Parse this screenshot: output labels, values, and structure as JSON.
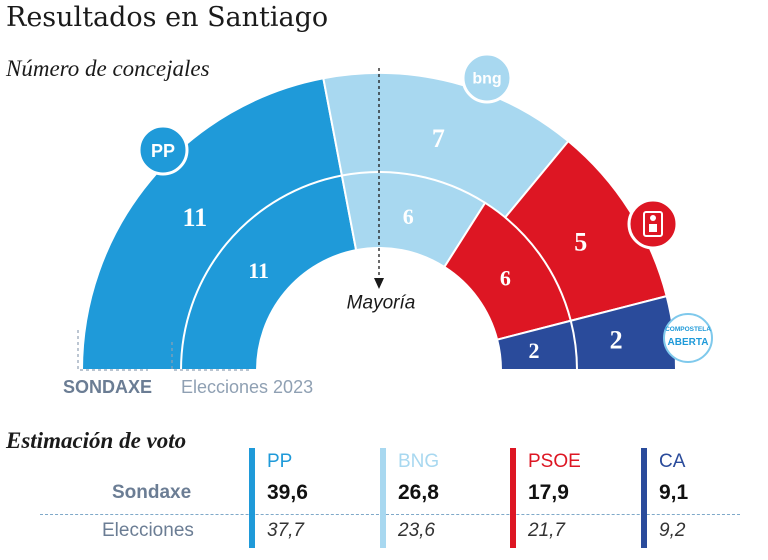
{
  "title": "Resultados en Santiago",
  "subtitle": "Número de concejales",
  "majority_label": "Mayoría",
  "votes_title": "Estimación de voto",
  "rows": {
    "main": "Sondaxe",
    "prev": "Elecciones"
  },
  "colors": {
    "PP": "#1f9ad9",
    "BNG": "#a8d8f0",
    "PSOE": "#dd1623",
    "CA": "#2a4b9b",
    "label": "#6b7d94"
  },
  "icons": {
    "PP": "pp-logo-icon",
    "BNG": "bng-logo-icon",
    "PSOE": "psoe-logo-icon",
    "CA": "compostela-aberta-logo-icon"
  },
  "logo_text": {
    "PP": "PP",
    "BNG": "bng",
    "CA_line1": "COMPOSTELA",
    "CA_line2": "ABERTA"
  },
  "chart_data": [
    {
      "type": "pie",
      "variant": "semicircle",
      "label": "SONDAXE",
      "categories": [
        "PP",
        "BNG",
        "PSOE",
        "CA"
      ],
      "values": [
        11,
        7,
        5,
        2
      ]
    },
    {
      "type": "pie",
      "variant": "semicircle",
      "label": "Elecciones 2023",
      "categories": [
        "PP",
        "BNG",
        "PSOE",
        "CA"
      ],
      "values": [
        11,
        6,
        6,
        2
      ]
    },
    {
      "type": "table",
      "title": "Estimación de voto",
      "columns": [
        "PP",
        "BNG",
        "PSOE",
        "CA"
      ],
      "rows": [
        {
          "label": "Sondaxe",
          "values": [
            "39,6",
            "26,8",
            "17,9",
            "9,1"
          ]
        },
        {
          "label": "Elecciones",
          "values": [
            "37,7",
            "23,6",
            "21,7",
            "9,2"
          ]
        }
      ]
    }
  ]
}
